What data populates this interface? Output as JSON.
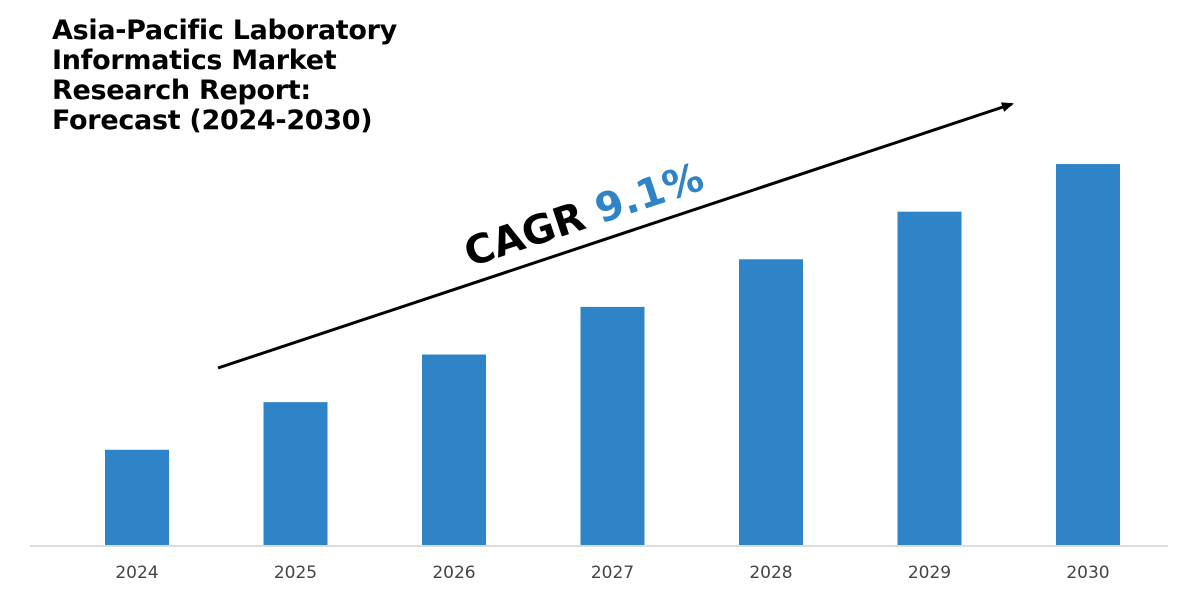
{
  "chart_data": {
    "type": "bar",
    "title": "Asia-Pacific Laboratory\nInformatics Market\nResearch Report:\nForecast (2024-2030)",
    "categories": [
      "2024",
      "2025",
      "2026",
      "2027",
      "2028",
      "2029",
      "2030"
    ],
    "values": [
      100,
      150,
      200,
      250,
      300,
      350,
      400
    ],
    "ylim": [
      0,
      420
    ],
    "xlabel": "",
    "ylabel": "",
    "grid": false,
    "bar_color": "#2e84c6",
    "annotation": {
      "label": "CAGR",
      "value": "9.1%",
      "label_color": "#000000",
      "value_color": "#2e84c6"
    }
  }
}
